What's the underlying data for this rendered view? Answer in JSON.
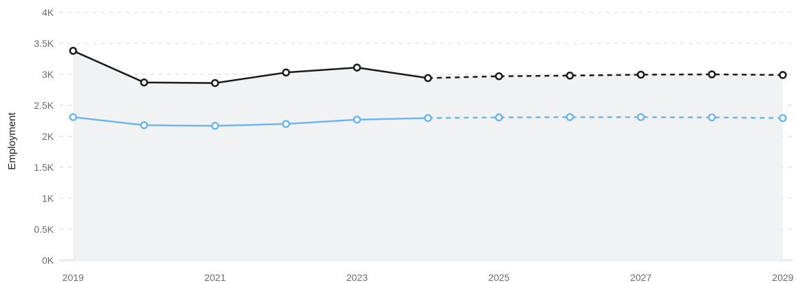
{
  "chart_data": {
    "type": "line",
    "title": "",
    "xlabel": "",
    "ylabel": "Employment",
    "x": [
      2019,
      2020,
      2021,
      2022,
      2023,
      2024,
      2025,
      2026,
      2027,
      2028,
      2029
    ],
    "x_tick_labels": [
      "2019",
      "2021",
      "2023",
      "2025",
      "2027",
      "2029"
    ],
    "x_tick_values": [
      2019,
      2021,
      2023,
      2025,
      2027,
      2029
    ],
    "y_tick_labels": [
      "0K",
      "0.5K",
      "1K",
      "1.5K",
      "2K",
      "2.5K",
      "3K",
      "3.5K",
      "4K"
    ],
    "y_tick_values": [
      0,
      500,
      1000,
      1500,
      2000,
      2500,
      3000,
      3500,
      4000
    ],
    "xlim": [
      2019,
      2029
    ],
    "ylim": [
      0,
      4000
    ],
    "grid": "horizontal dashed",
    "legend": "none",
    "projection_start": 2024,
    "series": [
      {
        "color": "#1a1a1a",
        "values": [
          3380,
          2870,
          2860,
          3030,
          3110,
          2940,
          2970,
          2980,
          2995,
          3000,
          2990
        ]
      },
      {
        "color": "#6db6ef",
        "values": [
          2310,
          2180,
          2170,
          2200,
          2270,
          2295,
          2305,
          2310,
          2310,
          2305,
          2295
        ]
      }
    ],
    "shaded_region_color": "#f1f2f4"
  }
}
